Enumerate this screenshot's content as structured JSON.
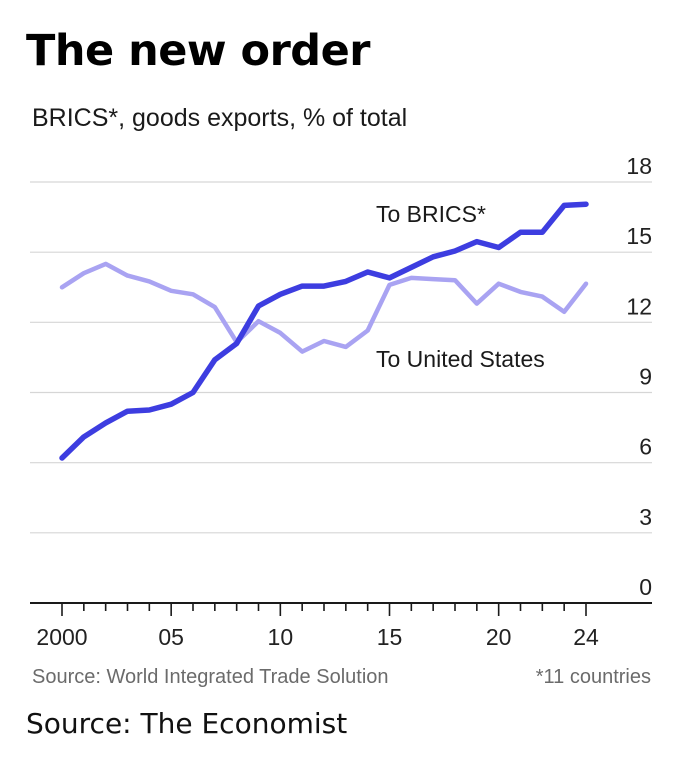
{
  "chart_data": {
    "type": "line",
    "title": "The new order",
    "subtitle": "BRICS*, goods exports, % of total",
    "x": [
      2000,
      2001,
      2002,
      2003,
      2004,
      2005,
      2006,
      2007,
      2008,
      2009,
      2010,
      2011,
      2012,
      2013,
      2014,
      2015,
      2016,
      2017,
      2018,
      2019,
      2020,
      2021,
      2022,
      2023,
      2024
    ],
    "series": [
      {
        "name": "To BRICS*",
        "color": "#3d3de0",
        "values": [
          6.2,
          7.1,
          7.7,
          8.2,
          8.25,
          8.5,
          9.0,
          10.4,
          11.1,
          12.7,
          13.2,
          13.55,
          13.55,
          13.75,
          14.15,
          13.9,
          14.35,
          14.8,
          15.05,
          15.45,
          15.2,
          15.85,
          15.85,
          17.0,
          17.05
        ]
      },
      {
        "name": "To United States",
        "color": "#a9a3f2",
        "values": [
          13.5,
          14.1,
          14.5,
          14.0,
          13.75,
          13.35,
          13.2,
          12.65,
          11.15,
          12.05,
          11.55,
          10.75,
          11.2,
          10.95,
          11.65,
          13.6,
          13.9,
          13.85,
          13.8,
          12.8,
          13.65,
          13.3,
          13.1,
          12.45,
          13.65
        ]
      }
    ],
    "xlim": [
      2000,
      2024
    ],
    "ylim": [
      0,
      18
    ],
    "yticks": [
      "0",
      "3",
      "6",
      "9",
      "12",
      "15",
      "18"
    ],
    "xticks": [
      {
        "value": 2000,
        "label": "2000"
      },
      {
        "value": 2005,
        "label": "05"
      },
      {
        "value": 2010,
        "label": "10"
      },
      {
        "value": 2015,
        "label": "15"
      },
      {
        "value": 2020,
        "label": "20"
      },
      {
        "value": 2024,
        "label": "24"
      }
    ],
    "grid": true,
    "source": "Source: World Integrated Trade Solution",
    "footnote": "*11 countries"
  },
  "attribution": "Source: The Economist"
}
